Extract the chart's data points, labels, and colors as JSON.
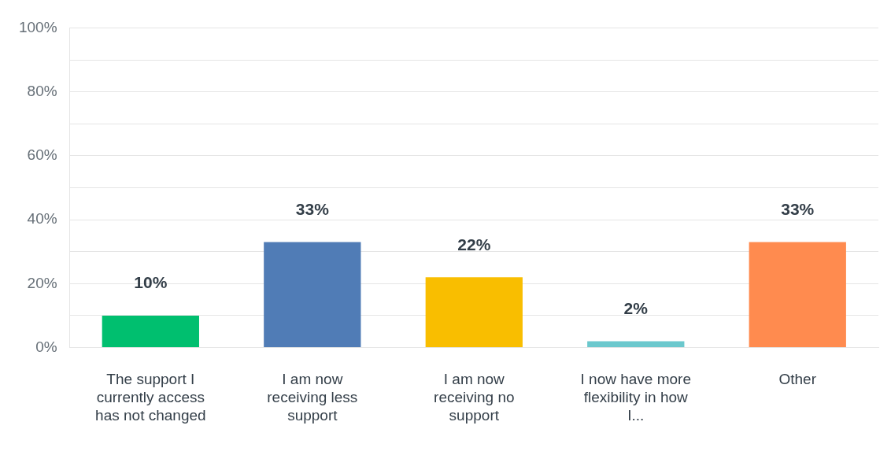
{
  "chart_data": {
    "type": "bar",
    "categories": [
      "The support I currently access has not changed",
      "I am now receiving less support",
      "I am now receiving no support",
      "I now have more flexibility in how I...",
      "Other"
    ],
    "values": [
      10,
      33,
      22,
      2,
      33
    ],
    "colors": [
      "#00bf6f",
      "#507cb6",
      "#f9be00",
      "#6bc8cd",
      "#ff8b4f"
    ],
    "value_labels": [
      "10%",
      "33%",
      "22%",
      "2%",
      "33%"
    ],
    "ylim": [
      0,
      100
    ],
    "yticks": [
      {
        "value": 0,
        "label": "0%"
      },
      {
        "value": 10,
        "label": null
      },
      {
        "value": 20,
        "label": "20%"
      },
      {
        "value": 30,
        "label": null
      },
      {
        "value": 40,
        "label": "40%"
      },
      {
        "value": 50,
        "label": null
      },
      {
        "value": 60,
        "label": "60%"
      },
      {
        "value": 70,
        "label": null
      },
      {
        "value": 80,
        "label": "80%"
      },
      {
        "value": 90,
        "label": null
      },
      {
        "value": 100,
        "label": "100%"
      }
    ],
    "grid": "y",
    "legend": false
  }
}
